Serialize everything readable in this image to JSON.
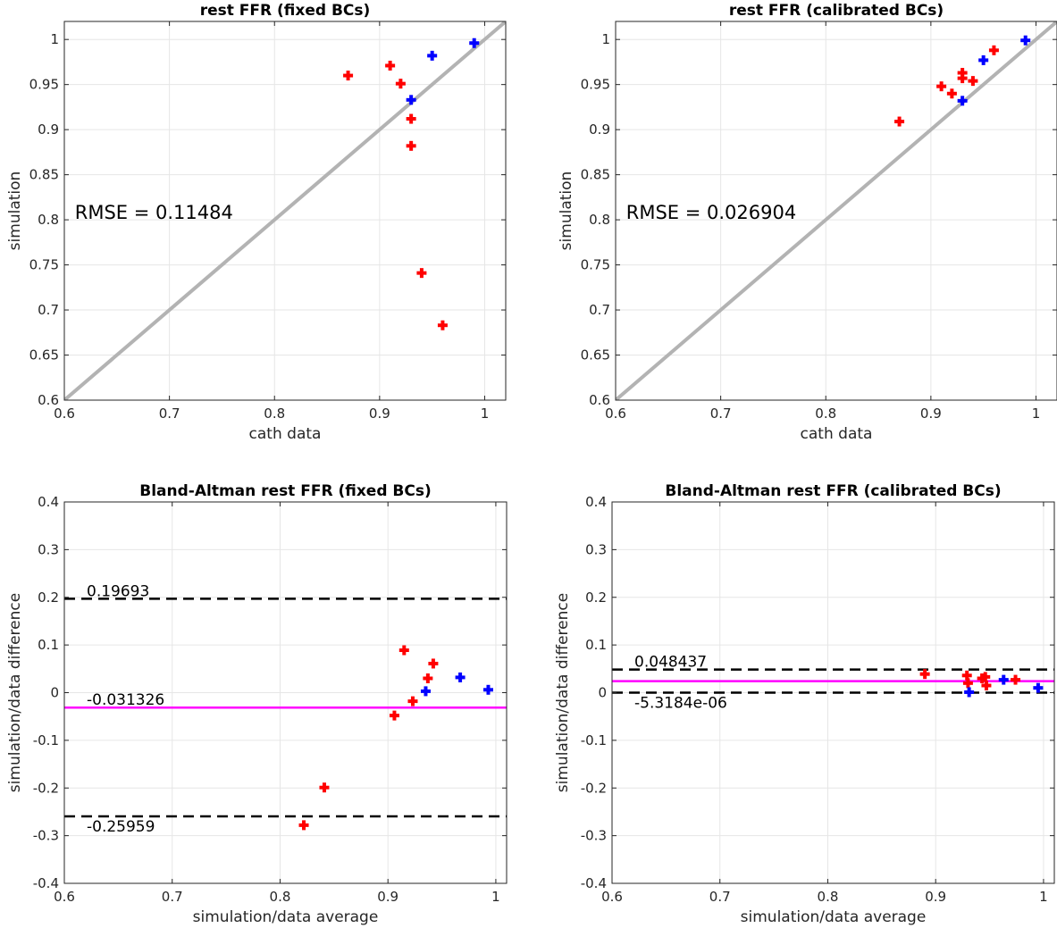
{
  "chart_data": [
    {
      "type": "scatter",
      "title": "rest FFR (fixed BCs)",
      "xlabel": "cath data",
      "ylabel": "simulation",
      "xlim": [
        0.6,
        1.02
      ],
      "ylim": [
        0.6,
        1.02
      ],
      "xticks": [
        0.6,
        0.7,
        0.8,
        0.9,
        1
      ],
      "xtick_labels": [
        "0.6",
        "0.7",
        "0.8",
        "0.9",
        "1"
      ],
      "yticks": [
        0.6,
        0.65,
        0.7,
        0.75,
        0.8,
        0.85,
        0.9,
        0.95,
        1
      ],
      "ytick_labels": [
        "0.6",
        "0.65",
        "0.7",
        "0.75",
        "0.8",
        "0.85",
        "0.9",
        "0.95",
        "1"
      ],
      "grid": true,
      "identity_line": true,
      "annotation": {
        "text": "RMSE = 0.11484",
        "x": 0.61,
        "y": 0.808
      },
      "series": [
        {
          "color": "#ff0000",
          "marker": "plus",
          "x": [
            0.87,
            0.91,
            0.92,
            0.93,
            0.93,
            0.94,
            0.96
          ],
          "y": [
            0.96,
            0.971,
            0.951,
            0.912,
            0.882,
            0.741,
            0.683
          ]
        },
        {
          "color": "#0000ff",
          "marker": "plus",
          "x": [
            0.93,
            0.95,
            0.99
          ],
          "y": [
            0.933,
            0.982,
            0.996
          ]
        }
      ]
    },
    {
      "type": "scatter",
      "title": "rest FFR (calibrated BCs)",
      "xlabel": "cath data",
      "ylabel": "simulation",
      "xlim": [
        0.6,
        1.02
      ],
      "ylim": [
        0.6,
        1.02
      ],
      "xticks": [
        0.6,
        0.7,
        0.8,
        0.9,
        1
      ],
      "xtick_labels": [
        "0.6",
        "0.7",
        "0.8",
        "0.9",
        "1"
      ],
      "yticks": [
        0.6,
        0.65,
        0.7,
        0.75,
        0.8,
        0.85,
        0.9,
        0.95,
        1
      ],
      "ytick_labels": [
        "0.6",
        "0.65",
        "0.7",
        "0.75",
        "0.8",
        "0.85",
        "0.9",
        "0.95",
        "1"
      ],
      "grid": true,
      "identity_line": true,
      "annotation": {
        "text": "RMSE = 0.026904",
        "x": 0.61,
        "y": 0.808
      },
      "series": [
        {
          "color": "#ff0000",
          "marker": "plus",
          "x": [
            0.87,
            0.91,
            0.92,
            0.93,
            0.93,
            0.94,
            0.96
          ],
          "y": [
            0.909,
            0.948,
            0.94,
            0.963,
            0.957,
            0.954,
            0.988
          ]
        },
        {
          "color": "#0000ff",
          "marker": "plus",
          "x": [
            0.93,
            0.95,
            0.99
          ],
          "y": [
            0.932,
            0.977,
            0.999
          ]
        }
      ]
    },
    {
      "type": "scatter",
      "title": "Bland-Altman rest FFR (fixed BCs)",
      "xlabel": "simulation/data average",
      "ylabel": "simulation/data difference",
      "xlim": [
        0.6,
        1.01
      ],
      "ylim": [
        -0.4,
        0.4
      ],
      "xticks": [
        0.6,
        0.7,
        0.8,
        0.9,
        1
      ],
      "xtick_labels": [
        "0.6",
        "0.7",
        "0.8",
        "0.9",
        "1"
      ],
      "yticks": [
        -0.4,
        -0.3,
        -0.2,
        -0.1,
        0,
        0.1,
        0.2,
        0.3,
        0.4
      ],
      "ytick_labels": [
        "-0.4",
        "-0.3",
        "-0.2",
        "-0.1",
        "0",
        "0.1",
        "0.2",
        "0.3",
        "0.4"
      ],
      "grid": true,
      "mean_line": {
        "value": -0.031326,
        "label": "-0.031326",
        "color": "#ff00ff"
      },
      "limits": [
        {
          "value": 0.19693,
          "label": "0.19693",
          "label_pos": "above"
        },
        {
          "value": -0.25959,
          "label": "-0.25959",
          "label_pos": "below"
        }
      ],
      "series": [
        {
          "color": "#ff0000",
          "marker": "plus",
          "x": [
            0.915,
            0.942,
            0.937,
            0.923,
            0.906,
            0.841,
            0.822
          ],
          "y": [
            0.089,
            0.061,
            0.03,
            -0.018,
            -0.048,
            -0.199,
            -0.278
          ]
        },
        {
          "color": "#0000ff",
          "marker": "plus",
          "x": [
            0.935,
            0.967,
            0.993
          ],
          "y": [
            0.003,
            0.032,
            0.006
          ]
        }
      ]
    },
    {
      "type": "scatter",
      "title": "Bland-Altman rest FFR (calibrated BCs)",
      "xlabel": "simulation/data average",
      "ylabel": "simulation/data difference",
      "xlim": [
        0.6,
        1.01
      ],
      "ylim": [
        -0.4,
        0.4
      ],
      "xticks": [
        0.6,
        0.7,
        0.8,
        0.9,
        1
      ],
      "xtick_labels": [
        "0.6",
        "0.7",
        "0.8",
        "0.9",
        "1"
      ],
      "yticks": [
        -0.4,
        -0.3,
        -0.2,
        -0.1,
        0,
        0.1,
        0.2,
        0.3,
        0.4
      ],
      "ytick_labels": [
        "-0.4",
        "-0.3",
        "-0.2",
        "-0.1",
        "0",
        "0.1",
        "0.2",
        "0.3",
        "0.4"
      ],
      "grid": true,
      "mean_line": {
        "value": 0.024216,
        "label": "",
        "color": "#ff00ff"
      },
      "limits": [
        {
          "value": 0.048437,
          "label": "0.048437",
          "label_pos": "above"
        },
        {
          "value": -5.3184e-06,
          "label": "-5.3184e-06",
          "label_pos": "below"
        }
      ],
      "series": [
        {
          "color": "#ff0000",
          "marker": "plus",
          "x": [
            0.89,
            0.929,
            0.93,
            0.943,
            0.946,
            0.947,
            0.974
          ],
          "y": [
            0.039,
            0.036,
            0.02,
            0.03,
            0.033,
            0.015,
            0.027
          ]
        },
        {
          "color": "#0000ff",
          "marker": "plus",
          "x": [
            0.931,
            0.963,
            0.995
          ],
          "y": [
            0.001,
            0.027,
            0.01
          ]
        }
      ]
    }
  ]
}
